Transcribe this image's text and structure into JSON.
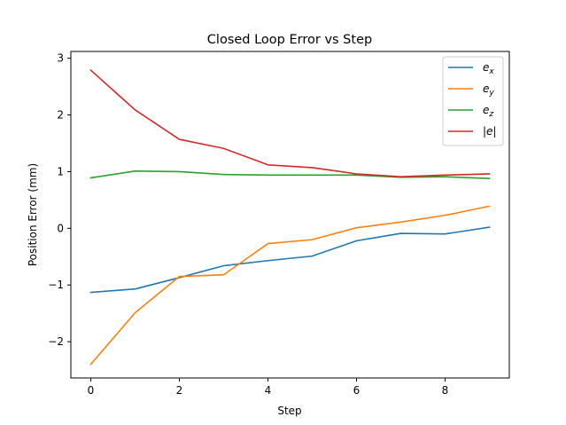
{
  "chart_data": {
    "type": "line",
    "title": "Closed Loop Error vs Step",
    "xlabel": "Step",
    "ylabel": "Position Error (mm)",
    "xlim": [
      -0.45,
      9.45
    ],
    "ylim": [
      -2.64,
      3.12
    ],
    "xticks": [
      0,
      2,
      4,
      6,
      8
    ],
    "yticks": [
      -2,
      -1,
      0,
      1,
      2,
      3
    ],
    "ytick_labels": [
      "−2",
      "−1",
      "0",
      "1",
      "2",
      "3"
    ],
    "legend_position": "top-right",
    "grid": false,
    "x": [
      0,
      1,
      2,
      3,
      4,
      5,
      6,
      7,
      8,
      9
    ],
    "series": [
      {
        "name": "e_x",
        "legend_base": "e",
        "legend_sub": "x",
        "color": "#1f77b4",
        "values": [
          -1.13,
          -1.07,
          -0.87,
          -0.66,
          -0.57,
          -0.49,
          -0.22,
          -0.09,
          -0.1,
          0.02
        ]
      },
      {
        "name": "e_y",
        "legend_base": "e",
        "legend_sub": "y",
        "color": "#ff7f0e",
        "values": [
          -2.4,
          -1.49,
          -0.85,
          -0.82,
          -0.27,
          -0.2,
          0.01,
          0.11,
          0.23,
          0.39
        ]
      },
      {
        "name": "e_z",
        "legend_base": "e",
        "legend_sub": "z",
        "color": "#2ca02c",
        "values": [
          0.89,
          1.01,
          1.0,
          0.95,
          0.94,
          0.94,
          0.94,
          0.9,
          0.91,
          0.88
        ]
      },
      {
        "name": "|e|",
        "legend_base": "|e|",
        "legend_sub": "",
        "color": "#d62728",
        "values": [
          2.79,
          2.09,
          1.57,
          1.41,
          1.12,
          1.07,
          0.96,
          0.91,
          0.94,
          0.96
        ]
      }
    ]
  }
}
